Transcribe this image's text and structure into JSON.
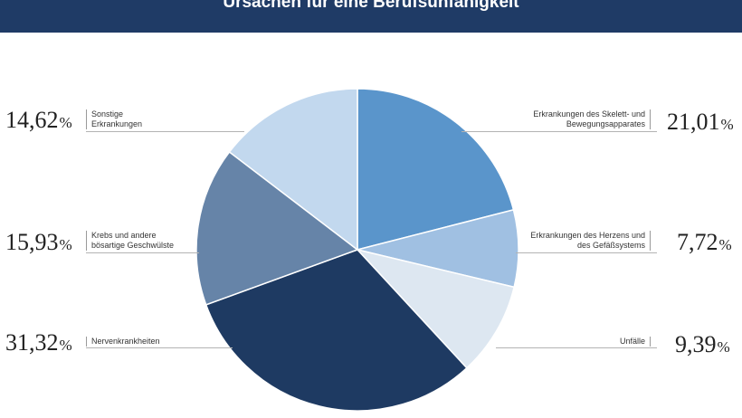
{
  "title": "Ursachen für eine Berufsunfähigkeit",
  "colors": {
    "header": "#1f3b66",
    "skeleton": "#5a95cb",
    "heart": "#a0c0e2",
    "accident": "#dde7f1",
    "nerve": "#1e3a62",
    "cancer": "#6684a8",
    "other": "#c2d8ee"
  },
  "chart_data": {
    "type": "pie",
    "title": "Ursachen für eine Berufsunfähigkeit",
    "unit": "%",
    "slices": [
      {
        "id": "skeleton",
        "label_lines": [
          "Erkrankungen des Skelett- und",
          "Bewegungsapparates"
        ],
        "value": 21.01,
        "display": "21,01",
        "color": "#5a95cb"
      },
      {
        "id": "heart",
        "label_lines": [
          "Erkrankungen des Herzens und",
          "des Gefäßsystems"
        ],
        "value": 7.72,
        "display": "7,72",
        "color": "#a0c0e2"
      },
      {
        "id": "accident",
        "label_lines": [
          "Unfälle"
        ],
        "value": 9.39,
        "display": "9,39",
        "color": "#dde7f1"
      },
      {
        "id": "nerve",
        "label_lines": [
          "Nervenkrankheiten"
        ],
        "value": 31.32,
        "display": "31,32",
        "color": "#1e3a62"
      },
      {
        "id": "cancer",
        "label_lines": [
          "Krebs und andere",
          "bösartige Geschwülste"
        ],
        "value": 15.93,
        "display": "15,93",
        "color": "#6684a8"
      },
      {
        "id": "other",
        "label_lines": [
          "Sonstige",
          "Erkrankungen"
        ],
        "value": 14.62,
        "display": "14,62",
        "color": "#c2d8ee"
      }
    ]
  }
}
